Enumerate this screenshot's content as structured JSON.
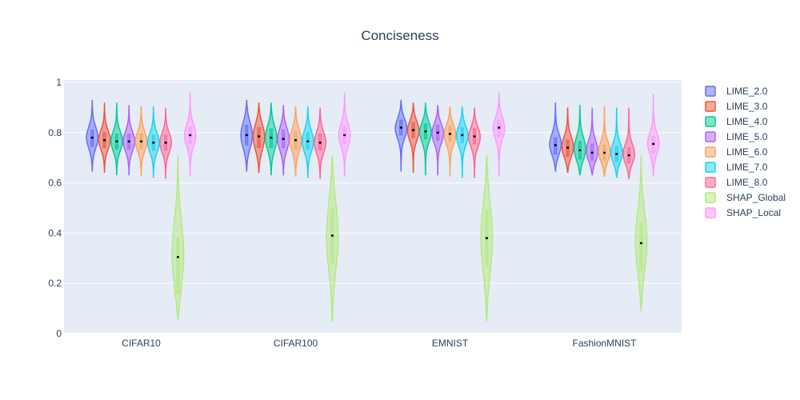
{
  "chart_data": {
    "type": "violin",
    "title": "Conciseness",
    "xlabel": "",
    "ylabel": "",
    "categories": [
      "CIFAR10",
      "CIFAR100",
      "EMNIST",
      "FashionMNIST"
    ],
    "ylim": [
      0,
      1
    ],
    "yticks": [
      0,
      0.2,
      0.4,
      0.6,
      0.8,
      1
    ],
    "ytick_labels": [
      "0",
      "0.2",
      "0.4",
      "0.6",
      "0.8",
      "1"
    ],
    "grid": true,
    "legend_position": "right",
    "series": [
      {
        "name": "LIME_2.0",
        "color": "#636efa",
        "min": [
          0.645,
          0.645,
          0.645,
          0.645
        ],
        "q1": [
          0.745,
          0.75,
          0.79,
          0.715
        ],
        "median": [
          0.78,
          0.79,
          0.82,
          0.75
        ],
        "q3": [
          0.81,
          0.83,
          0.85,
          0.78
        ],
        "max": [
          0.93,
          0.93,
          0.93,
          0.92
        ]
      },
      {
        "name": "LIME_3.0",
        "color": "#ef553b",
        "min": [
          0.64,
          0.64,
          0.64,
          0.64
        ],
        "q1": [
          0.74,
          0.74,
          0.78,
          0.705
        ],
        "median": [
          0.77,
          0.785,
          0.81,
          0.74
        ],
        "q3": [
          0.8,
          0.82,
          0.84,
          0.77
        ],
        "max": [
          0.92,
          0.92,
          0.92,
          0.9
        ]
      },
      {
        "name": "LIME_4.0",
        "color": "#00cc96",
        "min": [
          0.63,
          0.63,
          0.63,
          0.63
        ],
        "q1": [
          0.735,
          0.74,
          0.775,
          0.695
        ],
        "median": [
          0.765,
          0.78,
          0.805,
          0.73
        ],
        "q3": [
          0.795,
          0.815,
          0.835,
          0.765
        ],
        "max": [
          0.92,
          0.92,
          0.92,
          0.91
        ]
      },
      {
        "name": "LIME_5.0",
        "color": "#ab63fa",
        "min": [
          0.63,
          0.63,
          0.63,
          0.63
        ],
        "q1": [
          0.735,
          0.74,
          0.77,
          0.69
        ],
        "median": [
          0.765,
          0.775,
          0.8,
          0.72
        ],
        "q3": [
          0.795,
          0.81,
          0.83,
          0.755
        ],
        "max": [
          0.91,
          0.91,
          0.91,
          0.9
        ]
      },
      {
        "name": "LIME_6.0",
        "color": "#ffa15a",
        "min": [
          0.625,
          0.625,
          0.625,
          0.625
        ],
        "q1": [
          0.735,
          0.735,
          0.765,
          0.69
        ],
        "median": [
          0.765,
          0.77,
          0.795,
          0.72
        ],
        "q3": [
          0.795,
          0.805,
          0.825,
          0.75
        ],
        "max": [
          0.905,
          0.905,
          0.905,
          0.905
        ]
      },
      {
        "name": "LIME_7.0",
        "color": "#19d3f3",
        "min": [
          0.62,
          0.62,
          0.62,
          0.62
        ],
        "q1": [
          0.73,
          0.735,
          0.76,
          0.685
        ],
        "median": [
          0.76,
          0.765,
          0.79,
          0.715
        ],
        "q3": [
          0.79,
          0.8,
          0.82,
          0.745
        ],
        "max": [
          0.905,
          0.905,
          0.905,
          0.9
        ]
      },
      {
        "name": "LIME_8.0",
        "color": "#ff6692",
        "min": [
          0.615,
          0.615,
          0.62,
          0.615
        ],
        "q1": [
          0.73,
          0.73,
          0.755,
          0.68
        ],
        "median": [
          0.76,
          0.76,
          0.785,
          0.71
        ],
        "q3": [
          0.79,
          0.795,
          0.815,
          0.74
        ],
        "max": [
          0.9,
          0.9,
          0.9,
          0.9
        ]
      },
      {
        "name": "SHAP_Global",
        "color": "#b6e880",
        "min": [
          0.055,
          0.045,
          0.05,
          0.09
        ],
        "q1": [
          0.16,
          0.28,
          0.27,
          0.25
        ],
        "median": [
          0.305,
          0.39,
          0.38,
          0.36
        ],
        "q3": [
          0.38,
          0.5,
          0.49,
          0.44
        ],
        "max": [
          0.71,
          0.71,
          0.71,
          0.71
        ]
      },
      {
        "name": "SHAP_Local",
        "color": "#ff97ff",
        "min": [
          0.625,
          0.625,
          0.625,
          0.625
        ],
        "q1": [
          0.755,
          0.755,
          0.785,
          0.72
        ],
        "median": [
          0.79,
          0.79,
          0.82,
          0.755
        ],
        "q3": [
          0.82,
          0.825,
          0.85,
          0.785
        ],
        "max": [
          0.96,
          0.96,
          0.96,
          0.955
        ]
      }
    ]
  }
}
